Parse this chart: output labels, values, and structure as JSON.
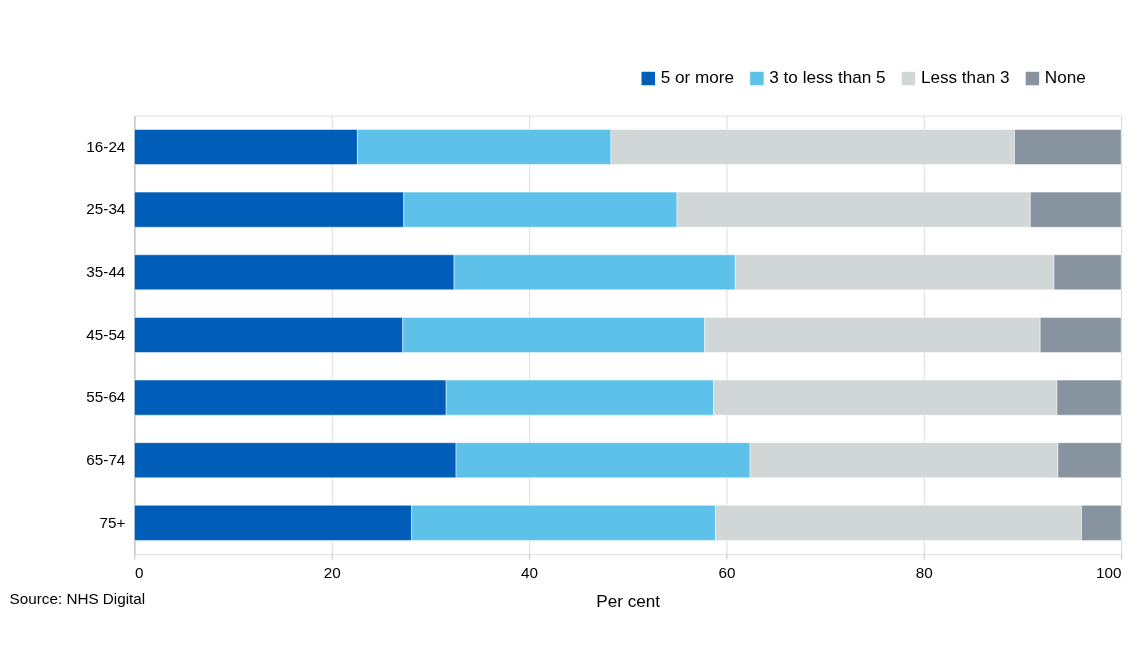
{
  "chart_data": {
    "type": "bar",
    "orientation": "horizontal",
    "stacked": true,
    "categories": [
      "16-24",
      "25-34",
      "35-44",
      "45-54",
      "55-64",
      "65-74",
      "75+"
    ],
    "series": [
      {
        "name": "5 or more",
        "color": "#005eb8",
        "values": [
          22.6,
          27.3,
          32.4,
          27.2,
          31.6,
          32.6,
          28.1
        ]
      },
      {
        "name": "3 to less than 5",
        "color": "#5ec1ea",
        "values": [
          25.7,
          27.7,
          28.5,
          30.6,
          27.1,
          29.8,
          30.8
        ]
      },
      {
        "name": "Less than 3",
        "color": "#d1d6d6",
        "values": [
          40.9,
          35.8,
          32.3,
          34.0,
          34.8,
          31.2,
          37.1
        ]
      },
      {
        "name": "None",
        "color": "#87939e",
        "values": [
          10.8,
          9.2,
          6.8,
          8.2,
          6.5,
          6.4,
          4.0
        ]
      }
    ],
    "xlim": [
      0,
      100
    ],
    "xticks": [
      0,
      20,
      40,
      60,
      80,
      100
    ],
    "xlabel": "Per cent",
    "grid": "x",
    "legend": "top right",
    "annotations": [
      "Source: NHS Digital"
    ]
  }
}
